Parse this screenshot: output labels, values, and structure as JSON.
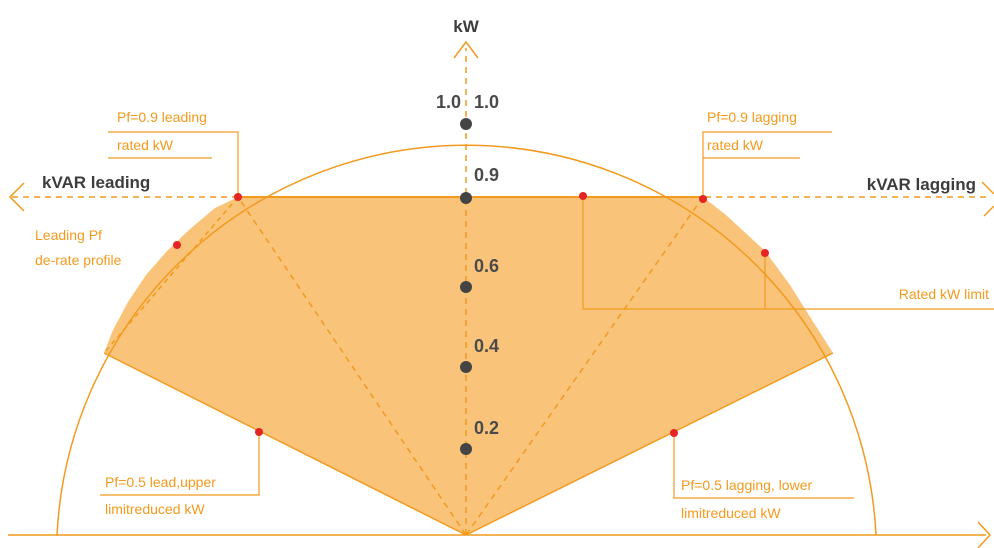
{
  "axes": {
    "vertical_label": "kW",
    "left_label": "kVAR leading",
    "right_label": "kVAR lagging"
  },
  "ticks": {
    "left_top": "1.0",
    "right_top": "1.0",
    "t09": "0.9",
    "t06": "0.6",
    "t04": "0.4",
    "t02": "0.2"
  },
  "annotations": {
    "pf09_leading": [
      "Pf=0.9 leading",
      "rated kW"
    ],
    "pf09_lagging": [
      "Pf=0.9 lagging",
      "rated kW"
    ],
    "leading_derate": [
      "Leading Pf",
      "de-rate profile"
    ],
    "rated_limit": "Rated kW limit",
    "pf05_lead": [
      "Pf=0.5 lead,upper",
      "limitreduced kW"
    ],
    "pf05_lag": [
      "Pf=0.5 lagging, lower",
      "limitreduced kW"
    ]
  },
  "colors": {
    "orange_line": "#f39a1e",
    "orange_fill": "#f9c47a",
    "dot_red": "#e52424",
    "dot_gray": "#444444"
  }
}
